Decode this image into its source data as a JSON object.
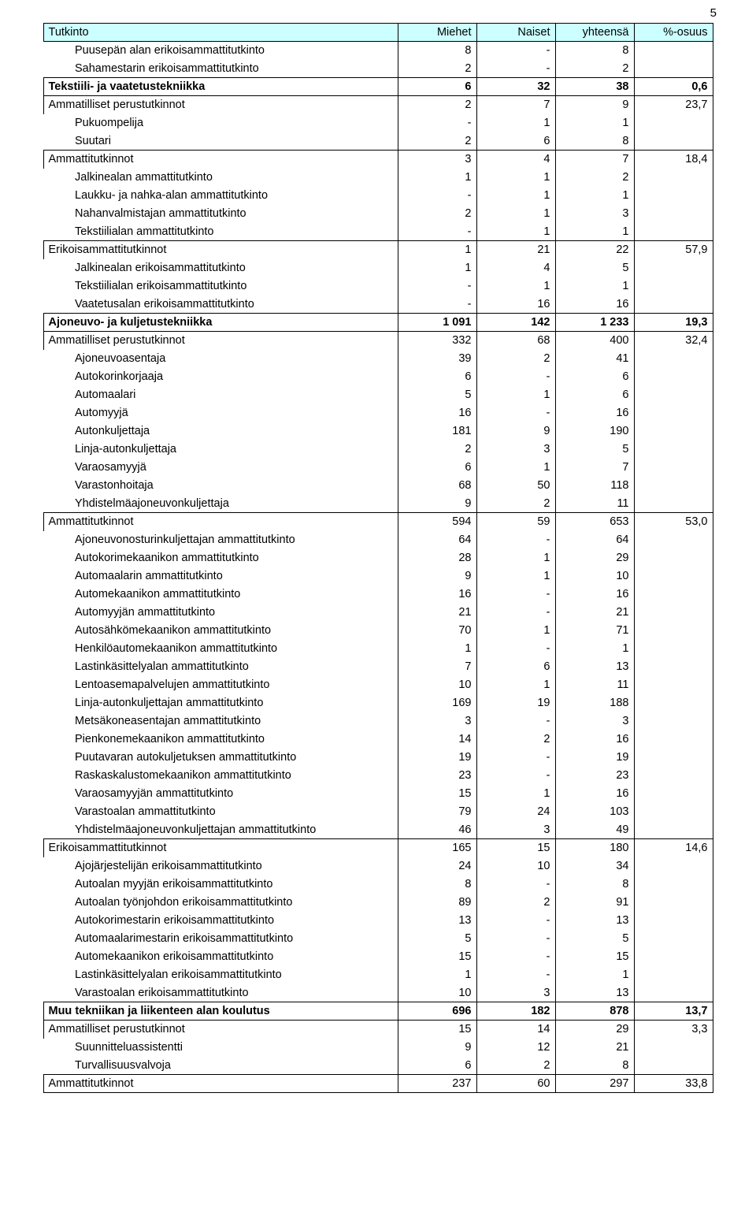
{
  "page_number": "5",
  "header_bg": "#ccffff",
  "columns": [
    "Tutkinto",
    "Miehet",
    "Naiset",
    "yhteensä",
    "%-osuus"
  ],
  "rows": [
    {
      "t": "detail",
      "label": "Puusepän alan erikoisammattitutkinto",
      "c": [
        "8",
        "-",
        "8",
        ""
      ]
    },
    {
      "t": "detail",
      "label": "Sahamestarin erikoisammattitutkinto",
      "c": [
        "2",
        "-",
        "2",
        ""
      ]
    },
    {
      "t": "section",
      "label": "Tekstiili- ja vaatetustekniikka",
      "c": [
        "6",
        "32",
        "38",
        "0,6"
      ]
    },
    {
      "t": "cat",
      "label": "Ammatilliset perustutkinnot",
      "c": [
        "2",
        "7",
        "9",
        "23,7"
      ]
    },
    {
      "t": "detail",
      "label": "Pukuompelija",
      "c": [
        "-",
        "1",
        "1",
        ""
      ]
    },
    {
      "t": "detail",
      "label": "Suutari",
      "c": [
        "2",
        "6",
        "8",
        ""
      ]
    },
    {
      "t": "cat",
      "label": "Ammattitutkinnot",
      "c": [
        "3",
        "4",
        "7",
        "18,4"
      ]
    },
    {
      "t": "detail",
      "label": "Jalkinealan ammattitutkinto",
      "c": [
        "1",
        "1",
        "2",
        ""
      ]
    },
    {
      "t": "detail",
      "label": "Laukku- ja nahka-alan ammattitutkinto",
      "c": [
        "-",
        "1",
        "1",
        ""
      ]
    },
    {
      "t": "detail",
      "label": "Nahanvalmistajan ammattitutkinto",
      "c": [
        "2",
        "1",
        "3",
        ""
      ]
    },
    {
      "t": "detail",
      "label": "Tekstiilialan ammattitutkinto",
      "c": [
        "-",
        "1",
        "1",
        ""
      ]
    },
    {
      "t": "cat",
      "label": "Erikoisammattitutkinnot",
      "c": [
        "1",
        "21",
        "22",
        "57,9"
      ]
    },
    {
      "t": "detail",
      "label": "Jalkinealan erikoisammattitutkinto",
      "c": [
        "1",
        "4",
        "5",
        ""
      ]
    },
    {
      "t": "detail",
      "label": "Tekstiilialan erikoisammattitutkinto",
      "c": [
        "-",
        "1",
        "1",
        ""
      ]
    },
    {
      "t": "detail",
      "label": "Vaatetusalan erikoisammattitutkinto",
      "c": [
        "-",
        "16",
        "16",
        ""
      ]
    },
    {
      "t": "section",
      "label": "Ajoneuvo- ja kuljetustekniikka",
      "c": [
        "1 091",
        "142",
        "1 233",
        "19,3"
      ]
    },
    {
      "t": "cat",
      "label": "Ammatilliset perustutkinnot",
      "c": [
        "332",
        "68",
        "400",
        "32,4"
      ]
    },
    {
      "t": "detail",
      "label": "Ajoneuvoasentaja",
      "c": [
        "39",
        "2",
        "41",
        ""
      ]
    },
    {
      "t": "detail",
      "label": "Autokorinkorjaaja",
      "c": [
        "6",
        "-",
        "6",
        ""
      ]
    },
    {
      "t": "detail",
      "label": "Automaalari",
      "c": [
        "5",
        "1",
        "6",
        ""
      ]
    },
    {
      "t": "detail",
      "label": "Automyyjä",
      "c": [
        "16",
        "-",
        "16",
        ""
      ]
    },
    {
      "t": "detail",
      "label": "Autonkuljettaja",
      "c": [
        "181",
        "9",
        "190",
        ""
      ]
    },
    {
      "t": "detail",
      "label": "Linja-autonkuljettaja",
      "c": [
        "2",
        "3",
        "5",
        ""
      ]
    },
    {
      "t": "detail",
      "label": "Varaosamyyjä",
      "c": [
        "6",
        "1",
        "7",
        ""
      ]
    },
    {
      "t": "detail",
      "label": "Varastonhoitaja",
      "c": [
        "68",
        "50",
        "118",
        ""
      ]
    },
    {
      "t": "detail",
      "label": "Yhdistelmäajoneuvonkuljettaja",
      "c": [
        "9",
        "2",
        "11",
        ""
      ]
    },
    {
      "t": "cat",
      "label": "Ammattitutkinnot",
      "c": [
        "594",
        "59",
        "653",
        "53,0"
      ]
    },
    {
      "t": "detail",
      "label": "Ajoneuvonosturinkuljettajan ammattitutkinto",
      "c": [
        "64",
        "-",
        "64",
        ""
      ]
    },
    {
      "t": "detail",
      "label": "Autokorimekaanikon ammattitutkinto",
      "c": [
        "28",
        "1",
        "29",
        ""
      ]
    },
    {
      "t": "detail",
      "label": "Automaalarin ammattitutkinto",
      "c": [
        "9",
        "1",
        "10",
        ""
      ]
    },
    {
      "t": "detail",
      "label": "Automekaanikon ammattitutkinto",
      "c": [
        "16",
        "-",
        "16",
        ""
      ]
    },
    {
      "t": "detail",
      "label": "Automyyjän ammattitutkinto",
      "c": [
        "21",
        "-",
        "21",
        ""
      ]
    },
    {
      "t": "detail",
      "label": "Autosähkömekaanikon ammattitutkinto",
      "c": [
        "70",
        "1",
        "71",
        ""
      ]
    },
    {
      "t": "detail",
      "label": "Henkilöautomekaanikon ammattitutkinto",
      "c": [
        "1",
        "-",
        "1",
        ""
      ]
    },
    {
      "t": "detail",
      "label": "Lastinkäsittelyalan ammattitutkinto",
      "c": [
        "7",
        "6",
        "13",
        ""
      ]
    },
    {
      "t": "detail",
      "label": "Lentoasemapalvelujen ammattitutkinto",
      "c": [
        "10",
        "1",
        "11",
        ""
      ]
    },
    {
      "t": "detail",
      "label": "Linja-autonkuljettajan ammattitutkinto",
      "c": [
        "169",
        "19",
        "188",
        ""
      ]
    },
    {
      "t": "detail",
      "label": "Metsäkoneasentajan ammattitutkinto",
      "c": [
        "3",
        "-",
        "3",
        ""
      ]
    },
    {
      "t": "detail",
      "label": "Pienkonemekaanikon ammattitutkinto",
      "c": [
        "14",
        "2",
        "16",
        ""
      ]
    },
    {
      "t": "detail",
      "label": "Puutavaran autokuljetuksen ammattitutkinto",
      "c": [
        "19",
        "-",
        "19",
        ""
      ]
    },
    {
      "t": "detail",
      "label": "Raskaskalustomekaanikon ammattitutkinto",
      "c": [
        "23",
        "-",
        "23",
        ""
      ]
    },
    {
      "t": "detail",
      "label": "Varaosamyyjän ammattitutkinto",
      "c": [
        "15",
        "1",
        "16",
        ""
      ]
    },
    {
      "t": "detail",
      "label": "Varastoalan ammattitutkinto",
      "c": [
        "79",
        "24",
        "103",
        ""
      ]
    },
    {
      "t": "detail",
      "label": "Yhdistelmäajoneuvonkuljettajan ammattitutkinto",
      "c": [
        "46",
        "3",
        "49",
        ""
      ]
    },
    {
      "t": "cat",
      "label": "Erikoisammattitutkinnot",
      "c": [
        "165",
        "15",
        "180",
        "14,6"
      ]
    },
    {
      "t": "detail",
      "label": "Ajojärjestelijän erikoisammattitutkinto",
      "c": [
        "24",
        "10",
        "34",
        ""
      ]
    },
    {
      "t": "detail",
      "label": "Autoalan myyjän erikoisammattitutkinto",
      "c": [
        "8",
        "-",
        "8",
        ""
      ]
    },
    {
      "t": "detail",
      "label": "Autoalan työnjohdon erikoisammattitutkinto",
      "c": [
        "89",
        "2",
        "91",
        ""
      ]
    },
    {
      "t": "detail",
      "label": "Autokorimestarin erikoisammattitutkinto",
      "c": [
        "13",
        "-",
        "13",
        ""
      ]
    },
    {
      "t": "detail",
      "label": "Automaalarimestarin erikoisammattitutkinto",
      "c": [
        "5",
        "-",
        "5",
        ""
      ]
    },
    {
      "t": "detail",
      "label": "Automekaanikon erikoisammattitutkinto",
      "c": [
        "15",
        "-",
        "15",
        ""
      ]
    },
    {
      "t": "detail",
      "label": "Lastinkäsittelyalan erikoisammattitutkinto",
      "c": [
        "1",
        "-",
        "1",
        ""
      ]
    },
    {
      "t": "detail",
      "label": "Varastoalan erikoisammattitutkinto",
      "c": [
        "10",
        "3",
        "13",
        ""
      ]
    },
    {
      "t": "section",
      "label": "Muu tekniikan ja liikenteen alan koulutus",
      "c": [
        "696",
        "182",
        "878",
        "13,7"
      ]
    },
    {
      "t": "cat",
      "label": "Ammatilliset perustutkinnot",
      "c": [
        "15",
        "14",
        "29",
        "3,3"
      ]
    },
    {
      "t": "detail",
      "label": "Suunnitteluassistentti",
      "c": [
        "9",
        "12",
        "21",
        ""
      ]
    },
    {
      "t": "detail",
      "label": "Turvallisuusvalvoja",
      "c": [
        "6",
        "2",
        "8",
        ""
      ]
    },
    {
      "t": "cat",
      "label": "Ammattitutkinnot",
      "c": [
        "237",
        "60",
        "297",
        "33,8"
      ],
      "last": true
    }
  ]
}
